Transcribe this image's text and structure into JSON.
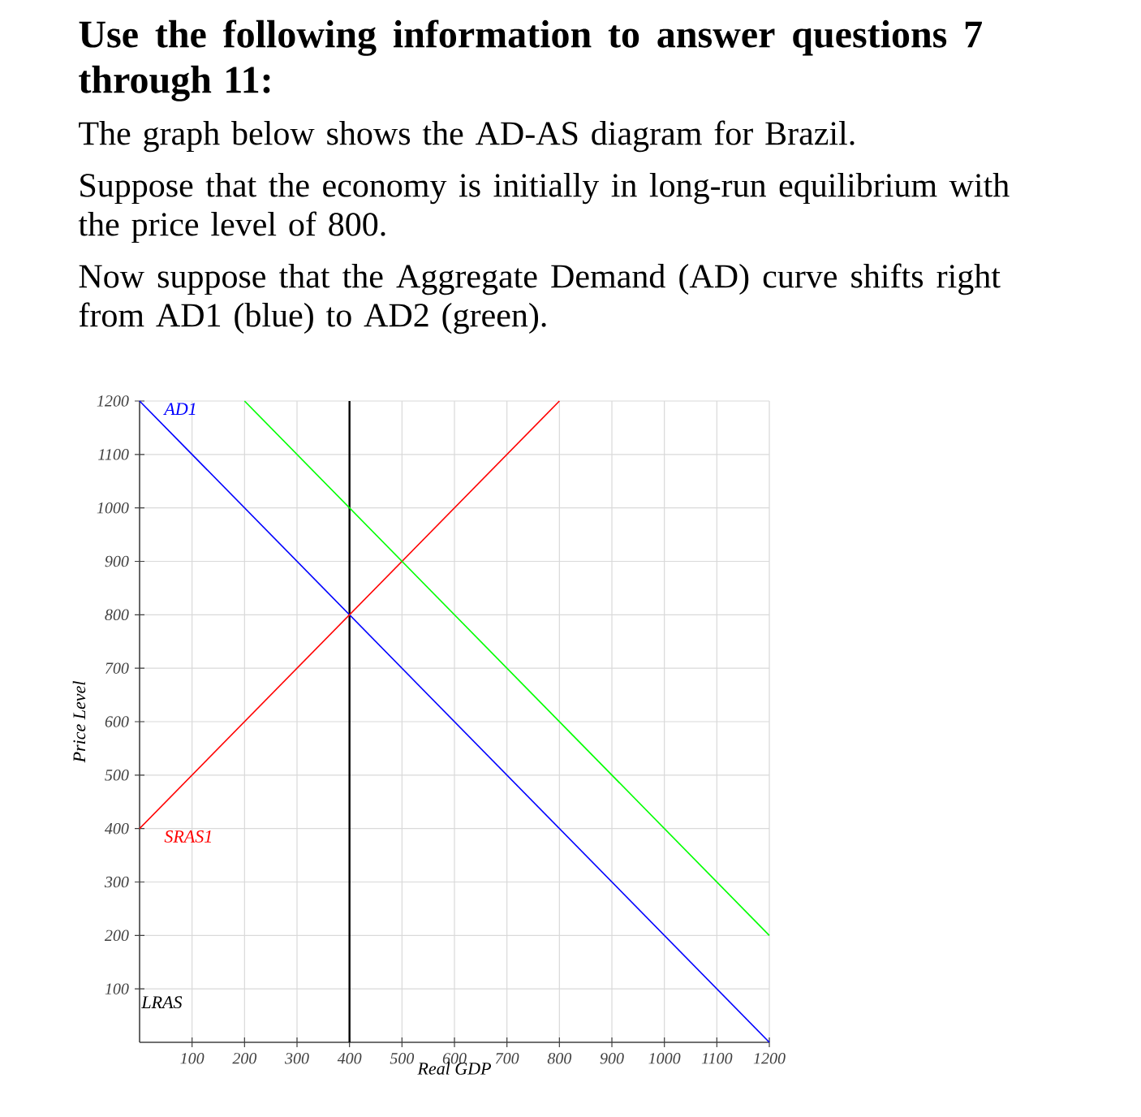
{
  "chart_data": {
    "type": "line",
    "title": "Use the following information to answer questions 7 through 11:",
    "subtitle": "The graph below shows the AD-AS diagram for Brazil.",
    "annotations": [
      "Suppose that the economy is initially in long-run equilibrium with the price level of 800.",
      "Now suppose that the Aggregate Demand (AD) curve shifts right from AD1 (blue) to AD2 (green)."
    ],
    "xlabel": "Real GDP",
    "ylabel": "Price Level",
    "xlim": [
      0,
      1200
    ],
    "ylim": [
      0,
      1200
    ],
    "xticks": [
      100,
      200,
      300,
      400,
      500,
      600,
      700,
      800,
      900,
      1000,
      1100,
      1200
    ],
    "yticks": [
      100,
      200,
      300,
      400,
      500,
      600,
      700,
      800,
      900,
      1000,
      1100,
      1200
    ],
    "grid": true,
    "marker": "none",
    "series": [
      {
        "name": "AD1",
        "color": "#0000ff",
        "x": [
          0,
          1200
        ],
        "values": [
          1200,
          0
        ]
      },
      {
        "name": "SRAS1",
        "color": "#ff0000",
        "x": [
          0,
          800
        ],
        "values": [
          400,
          1200
        ]
      },
      {
        "color": "#00ff00",
        "x": [
          200,
          1200
        ],
        "values": [
          1200,
          200
        ]
      }
    ],
    "ref_lines": [
      {
        "axis": "x",
        "value": 400,
        "label": "LRAS",
        "color": "#000000"
      }
    ]
  }
}
